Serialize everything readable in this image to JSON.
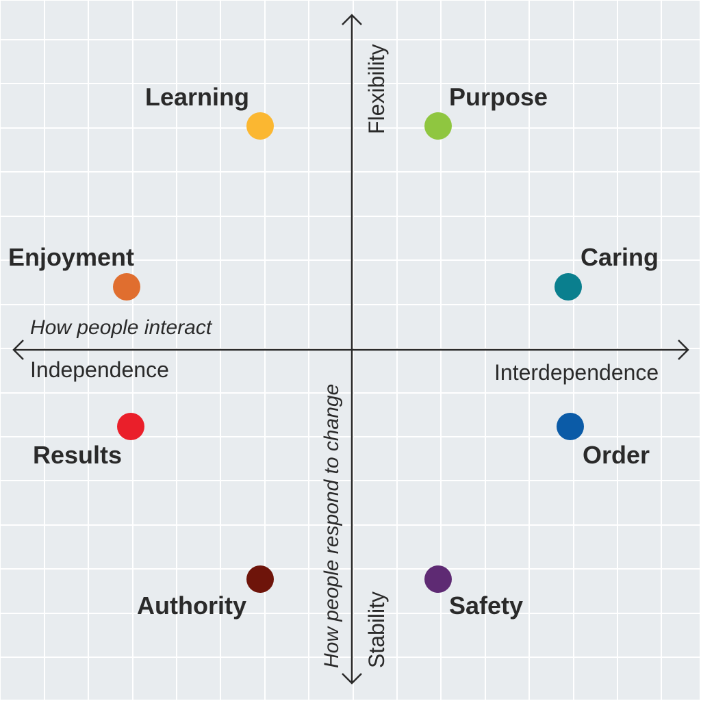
{
  "axes": {
    "horizontal": {
      "title": "How people interact",
      "left_end": "Independence",
      "right_end": "Interdependence"
    },
    "vertical": {
      "title": "How people respond to change",
      "top_end": "Flexibility",
      "bottom_end": "Stability"
    }
  },
  "items": [
    {
      "key": "learning",
      "label": "Learning",
      "color": "#fbb731"
    },
    {
      "key": "purpose",
      "label": "Purpose",
      "color": "#8fc640"
    },
    {
      "key": "enjoyment",
      "label": "Enjoyment",
      "color": "#e06e2f"
    },
    {
      "key": "caring",
      "label": "Caring",
      "color": "#0a7f8e"
    },
    {
      "key": "results",
      "label": "Results",
      "color": "#ea1f2a"
    },
    {
      "key": "order",
      "label": "Order",
      "color": "#0b5ba7"
    },
    {
      "key": "authority",
      "label": "Authority",
      "color": "#6e140a"
    },
    {
      "key": "safety",
      "label": "Safety",
      "color": "#5e2a73"
    }
  ],
  "colors": {
    "background": "#e8ecef",
    "grid": "#ffffff",
    "axis": "#2a2a2a",
    "text": "#2a2a2a"
  }
}
